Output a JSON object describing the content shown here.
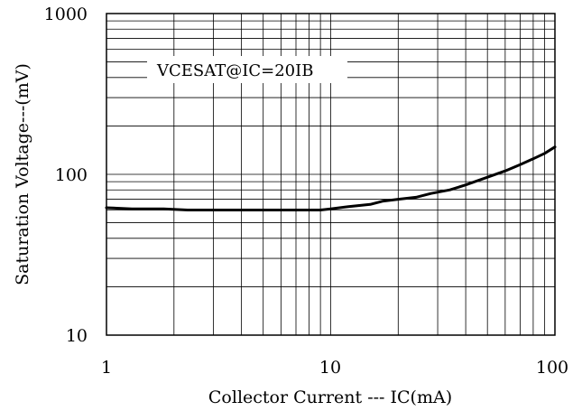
{
  "chart_data": {
    "type": "line",
    "xlabel": "Collector Current --- IC(mA)",
    "ylabel": "Saturation Voltage---(mV)",
    "x_scale": "log",
    "y_scale": "log",
    "xlim": [
      1,
      100
    ],
    "ylim": [
      10,
      1000
    ],
    "x_ticks": [
      "1",
      "10",
      "100"
    ],
    "y_ticks": [
      "1000",
      "100",
      "10"
    ],
    "grid": true,
    "annotation": "VCESAT@IC=20IB",
    "series": [
      {
        "color": "#000000",
        "x": [
          1,
          1.3,
          1.8,
          2.3,
          3,
          5,
          7,
          9,
          10,
          12,
          15,
          17,
          20,
          24,
          28,
          34,
          40,
          50,
          60,
          70,
          80,
          90,
          100
        ],
        "y": [
          62,
          61,
          61,
          60,
          60,
          60,
          60,
          60,
          61,
          63,
          65,
          68,
          70,
          72,
          76,
          80,
          86,
          96,
          105,
          115,
          125,
          135,
          148
        ]
      }
    ]
  }
}
